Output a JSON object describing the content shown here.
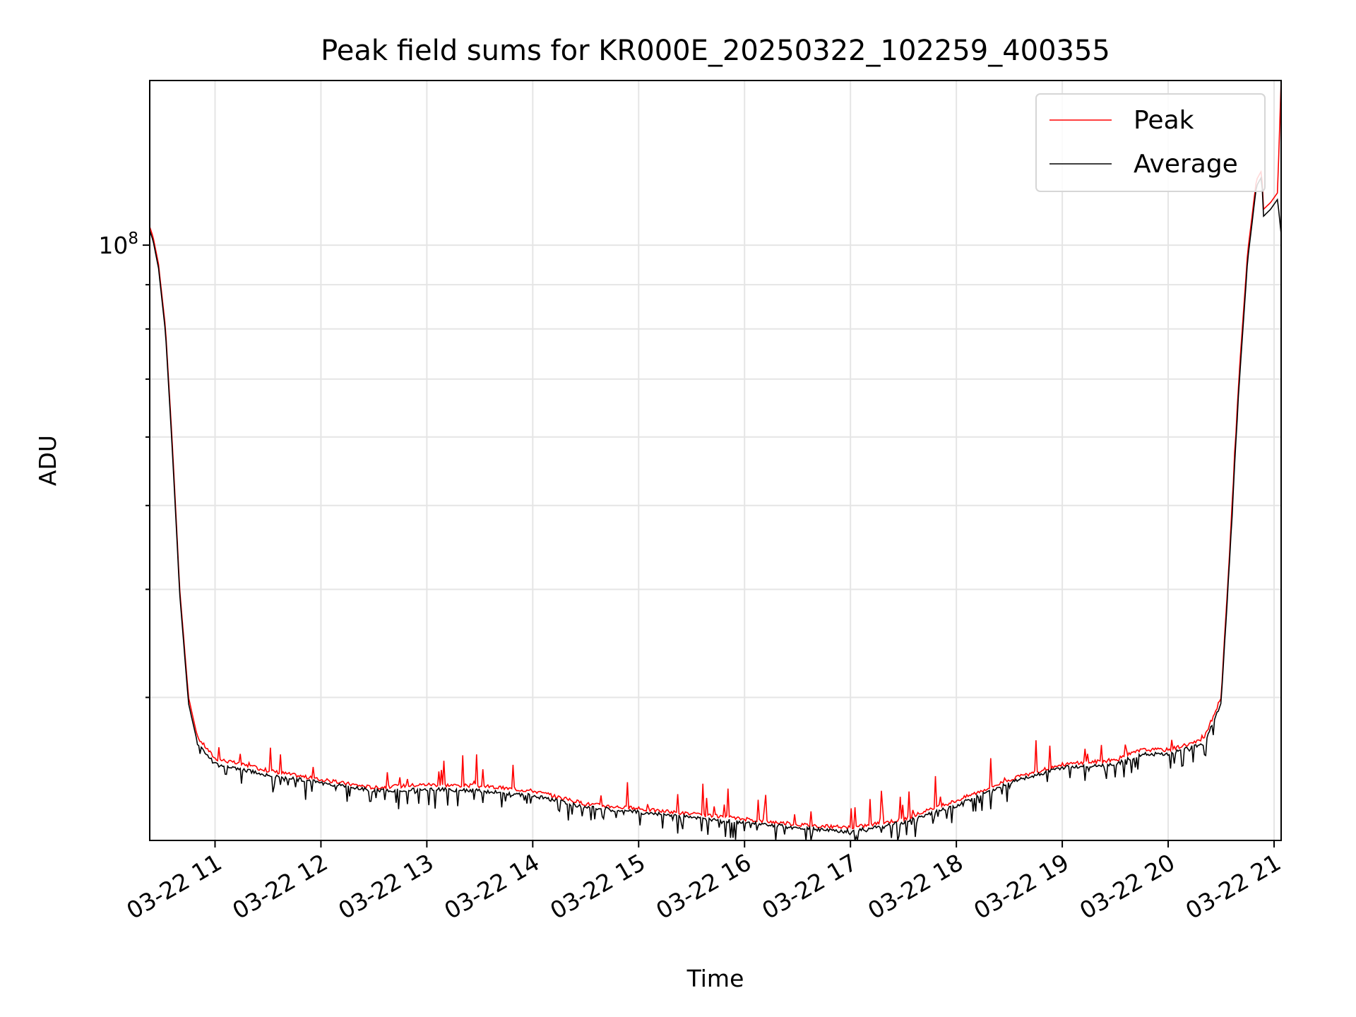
{
  "chart_data": {
    "type": "line",
    "title": "Peak field sums for KR000E_20250322_102259_400355",
    "xlabel": "Time",
    "ylabel": "ADU",
    "yscale": "log",
    "grid": "on (major and minor)",
    "legend_position": "top-right",
    "xlim": [
      "03-22 10:23",
      "03-22 21:04"
    ],
    "ylim": [
      20500000,
      155000000
    ],
    "x_tick_labels": [
      "03-22 11",
      "03-22 12",
      "03-22 13",
      "03-22 14",
      "03-22 15",
      "03-22 16",
      "03-22 17",
      "03-22 18",
      "03-22 19",
      "03-22 20",
      "03-22 21"
    ],
    "y_tick_labels": [
      {
        "base": "10",
        "exp": "8",
        "value": 100000000
      }
    ],
    "x": [
      "03-22 10:23",
      "03-22 10:25",
      "03-22 10:28",
      "03-22 10:32",
      "03-22 10:36",
      "03-22 10:40",
      "03-22 10:45",
      "03-22 10:50",
      "03-22 11:00",
      "03-22 11:30",
      "03-22 12:00",
      "03-22 12:30",
      "03-22 13:00",
      "03-22 13:30",
      "03-22 14:00",
      "03-22 14:30",
      "03-22 15:00",
      "03-22 15:30",
      "03-22 16:00",
      "03-22 16:30",
      "03-22 17:00",
      "03-22 17:30",
      "03-22 18:00",
      "03-22 18:30",
      "03-22 19:00",
      "03-22 19:30",
      "03-22 19:45",
      "03-22 20:00",
      "03-22 20:20",
      "03-22 20:30",
      "03-22 20:35",
      "03-22 20:40",
      "03-22 20:45",
      "03-22 20:50",
      "03-22 20:53",
      "03-22 20:54",
      "03-22 20:58",
      "03-22 21:02",
      "03-22 21:04"
    ],
    "series": [
      {
        "name": "Peak",
        "color": "#ff0000",
        "values": [
          105000000,
          102000000,
          95000000,
          80000000,
          58000000,
          40000000,
          30000000,
          27000000,
          25500000,
          24700000,
          24100000,
          23600000,
          23800000,
          23700000,
          23400000,
          22600000,
          22300000,
          22000000,
          21700000,
          21400000,
          21200000,
          21700000,
          22800000,
          24100000,
          25100000,
          25400000,
          26100000,
          26100000,
          26800000,
          30000000,
          45000000,
          70000000,
          98000000,
          119000000,
          122000000,
          110000000,
          112000000,
          115000000,
          155000000
        ]
      },
      {
        "name": "Average",
        "color": "#000000",
        "values": [
          104000000,
          101000000,
          94000000,
          79000000,
          57000000,
          39500000,
          29500000,
          26600000,
          25100000,
          24400000,
          23900000,
          23400000,
          23500000,
          23400000,
          23100000,
          22400000,
          22100000,
          21800000,
          21500000,
          21200000,
          21000000,
          21500000,
          22500000,
          23900000,
          24900000,
          25100000,
          25800000,
          25800000,
          26500000,
          29500000,
          44000000,
          68000000,
          96000000,
          117000000,
          120000000,
          108000000,
          110000000,
          113000000,
          103000000
        ]
      }
    ]
  }
}
